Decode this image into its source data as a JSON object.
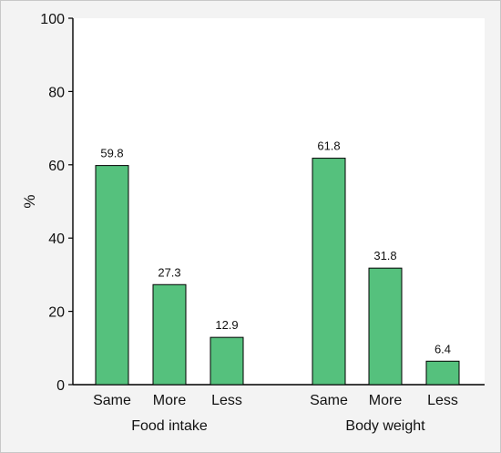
{
  "chart_data": {
    "type": "bar",
    "ylabel": "%",
    "ylim": [
      0,
      100
    ],
    "yticks": [
      "0",
      "20",
      "40",
      "60",
      "80",
      "100"
    ],
    "grid": false,
    "bar_color": "#55c17d",
    "groups": [
      {
        "name": "Food intake",
        "categories": [
          "Same",
          "More",
          "Less"
        ],
        "values": [
          59.8,
          27.3,
          12.9
        ],
        "labels": [
          "59.8",
          "27.3",
          "12.9"
        ]
      },
      {
        "name": "Body weight",
        "categories": [
          "Same",
          "More",
          "Less"
        ],
        "values": [
          61.8,
          31.8,
          6.4
        ],
        "labels": [
          "61.8",
          "31.8",
          "6.4"
        ]
      }
    ]
  }
}
